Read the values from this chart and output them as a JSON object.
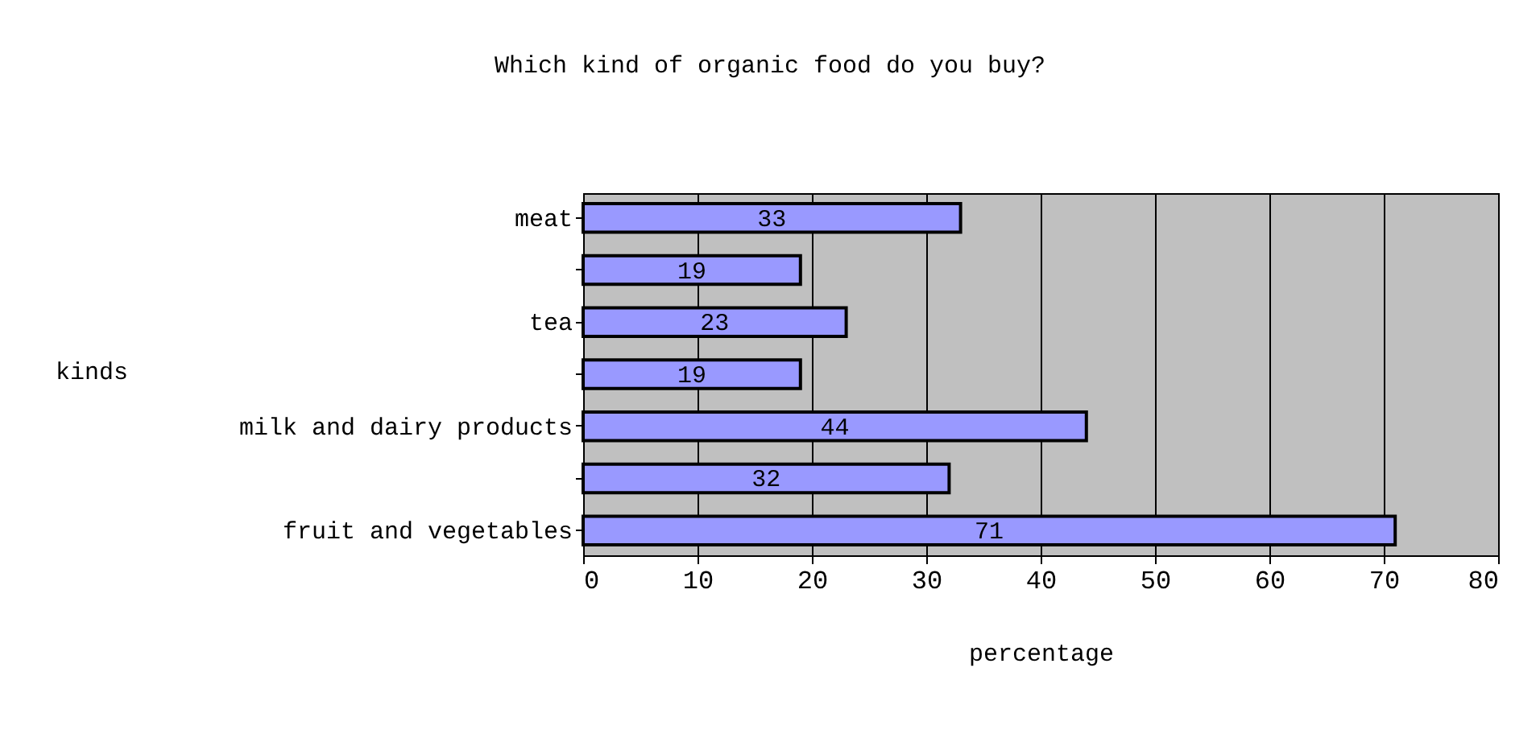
{
  "chart_data": {
    "type": "bar",
    "orientation": "horizontal",
    "title": "Which kind of organic food do you buy?",
    "xlabel": "percentage",
    "ylabel": "kinds",
    "categories": [
      "meat",
      null,
      "tea",
      null,
      "milk and dairy products",
      null,
      "fruit and vegetables"
    ],
    "values": [
      33,
      19,
      23,
      19,
      44,
      32,
      71
    ],
    "color": "#9999ff",
    "xlim": [
      0,
      80
    ],
    "xticks": [
      0,
      10,
      20,
      30,
      40,
      50,
      60,
      70,
      80
    ],
    "grid": "x",
    "data_labels": true
  }
}
